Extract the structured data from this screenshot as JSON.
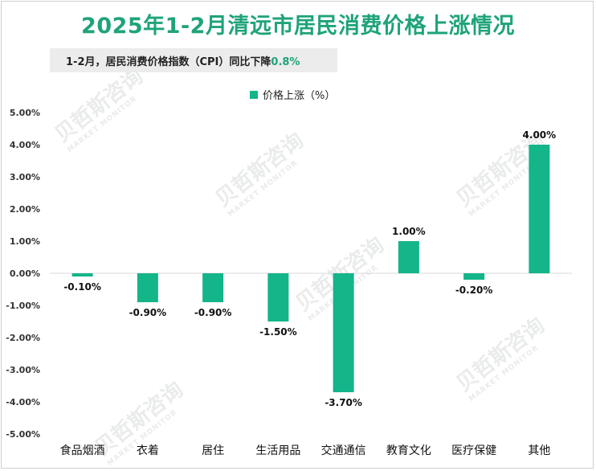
{
  "title": "2025年1-2月清远市居民消费价格上涨情况",
  "subtitle": {
    "text": "1-2月，居民消费价格指数（CPI）同比下降",
    "highlight": "0.8%",
    "highlight_color": "#1fa37a"
  },
  "colors": {
    "bar": "#13b589",
    "title": "#1fa37a"
  },
  "chart_data": {
    "type": "bar",
    "categories": [
      "食品烟酒",
      "衣着",
      "居住",
      "生活用品",
      "交通通信",
      "教育文化",
      "医疗保健",
      "其他"
    ],
    "series": [
      {
        "name": "价格上涨（%）",
        "values": [
          -0.1,
          -0.9,
          -0.9,
          -1.5,
          -3.7,
          1.0,
          -0.2,
          4.0
        ]
      }
    ],
    "data_labels": [
      "-0.10%",
      "-0.90%",
      "-0.90%",
      "-1.50%",
      "-3.70%",
      "1.00%",
      "-0.20%",
      "4.00%"
    ],
    "ylim": [
      -5,
      5
    ],
    "yticks": [
      5,
      4,
      3,
      2,
      1,
      0,
      -1,
      -2,
      -3,
      -4,
      -5
    ],
    "ytick_labels": [
      "5.00%",
      "4.00%",
      "3.00%",
      "2.00%",
      "1.00%",
      "0.00%",
      "-1.00%",
      "-2.00%",
      "-3.00%",
      "-4.00%",
      "-5.00%"
    ],
    "legend_position": "top-center",
    "grid": false
  }
}
